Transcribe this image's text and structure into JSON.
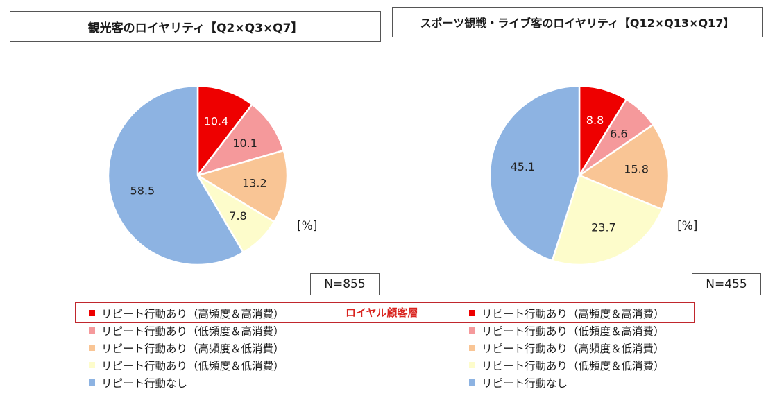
{
  "chart_data": [
    {
      "type": "pie",
      "title": "観光客のロイヤリティ【Q2×Q3×Q7】",
      "unit": "[%]",
      "n_label": "N=855",
      "categories": [
        "リピート行動あり（高頻度＆高消費）",
        "リピート行動あり（低頻度＆高消費）",
        "リピート行動あり（高頻度＆低消費）",
        "リピート行動あり（低頻度＆低消費）",
        "リピート行動なし"
      ],
      "values": [
        10.4,
        10.1,
        13.2,
        7.8,
        58.5
      ],
      "colors": [
        "#ee0000",
        "#f5999b",
        "#f9c595",
        "#fdfccb",
        "#8db3e2"
      ],
      "value_label_colors": [
        "#ffffff",
        "#222222",
        "#222222",
        "#222222",
        "#222222"
      ]
    },
    {
      "type": "pie",
      "title": "スポーツ観戦・ライブ客のロイヤリティ【Q12×Q13×Q17】",
      "unit": "[%]",
      "n_label": "N=455",
      "categories": [
        "リピート行動あり（高頻度＆高消費）",
        "リピート行動あり（低頻度＆高消費）",
        "リピート行動あり（高頻度＆低消費）",
        "リピート行動あり（低頻度＆低消費）",
        "リピート行動なし"
      ],
      "values": [
        8.8,
        6.6,
        15.8,
        23.7,
        45.1
      ],
      "colors": [
        "#ee0000",
        "#f5999b",
        "#f9c595",
        "#fdfccb",
        "#8db3e2"
      ],
      "value_label_colors": [
        "#ffffff",
        "#222222",
        "#222222",
        "#222222",
        "#222222"
      ]
    }
  ],
  "annotation": {
    "loyal_label": "ロイヤル顧客層",
    "color": "#d9241f"
  }
}
